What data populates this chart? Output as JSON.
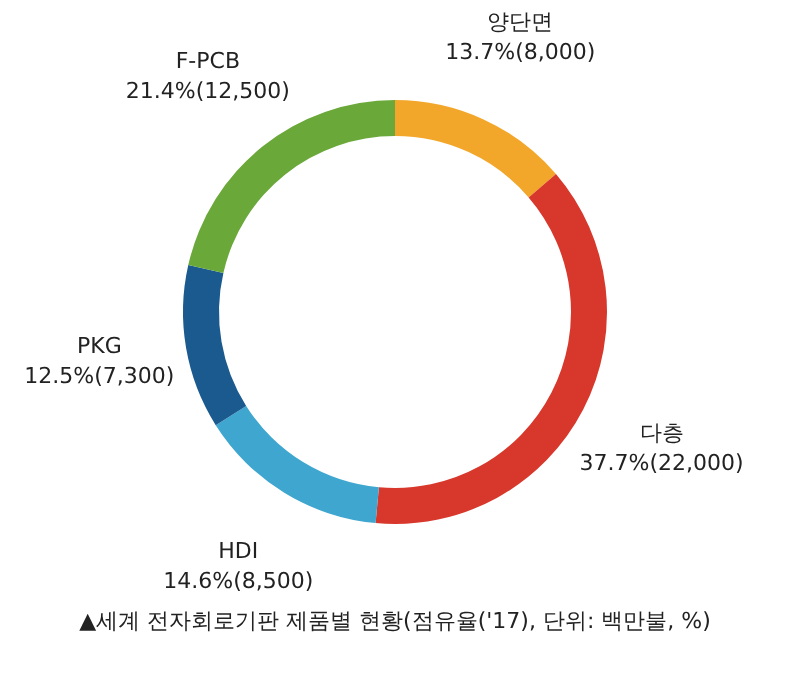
{
  "chart_data": {
    "type": "donut",
    "categories": [
      "양단면",
      "다층",
      "HDI",
      "PKG",
      "F-PCB"
    ],
    "values": [
      8000,
      22000,
      8500,
      7300,
      12500
    ],
    "value_labels": [
      "13.7%(8,000)",
      "37.7%(22,000)",
      "14.6%(8,500)",
      "12.5%(7,300)",
      "21.4%(12,500)"
    ],
    "colors": [
      "#f3a72a",
      "#d8372b",
      "#3ea6cf",
      "#1b5a8e",
      "#6aa83a"
    ],
    "legend": false,
    "annotations": [
      "▲세계 전자회로기판 제품별 현황(점유율('17), 단위: 백만불, %)"
    ]
  }
}
